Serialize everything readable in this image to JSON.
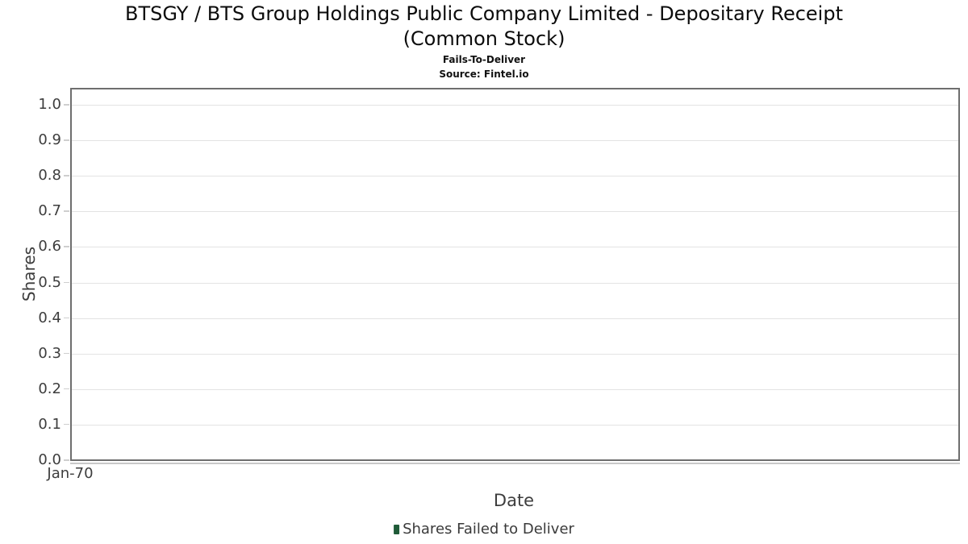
{
  "chart_data": {
    "type": "bar",
    "title": "BTSGY / BTS Group Holdings Public Company Limited - Depositary Receipt (Common Stock)",
    "subtitle": "Fails-To-Deliver",
    "source": "Source: Fintel.io",
    "xlabel": "Date",
    "ylabel": "Shares",
    "ylim": [
      0.0,
      1.05
    ],
    "yticks": [
      0.0,
      0.1,
      0.2,
      0.3,
      0.4,
      0.5,
      0.6,
      0.7,
      0.8,
      0.9,
      1.0
    ],
    "ytick_labels": [
      "0.0",
      "0.1",
      "0.2",
      "0.3",
      "0.4",
      "0.5",
      "0.6",
      "0.7",
      "0.8",
      "0.9",
      "1.0"
    ],
    "xtick_labels": [
      "Jan-70"
    ],
    "categories": [],
    "series": [
      {
        "name": "Shares Failed to Deliver",
        "values": []
      }
    ],
    "grid": true,
    "legend_position": "bottom",
    "legend": [
      {
        "label": "Shares Failed to Deliver",
        "color": "#1f5b38"
      }
    ],
    "colors": {
      "frame_border": "#6e6e6e",
      "gridline": "#e3e3e3",
      "tick_mark": "#cfcfcf",
      "axis_line": "#c8c8c8",
      "text": "#3d3d3d",
      "legend_marker": "#1f5b38"
    }
  }
}
